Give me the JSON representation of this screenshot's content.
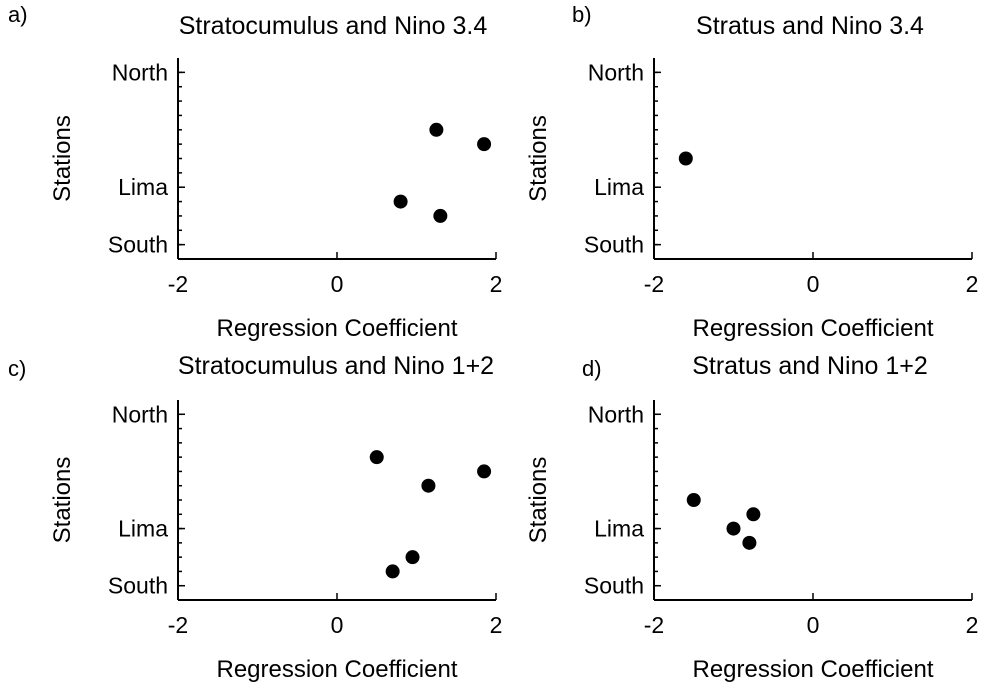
{
  "chart_data": [
    {
      "type": "scatter",
      "panel_label": "a)",
      "title": "Stratocumulus and Nino 3.4",
      "xlabel": "Regression Coefficient",
      "ylabel": "Stations",
      "xlim": [
        -2,
        2
      ],
      "ylim": [
        0,
        14
      ],
      "xticks": [
        -2,
        0,
        2
      ],
      "yticks": [
        {
          "value": 1,
          "label": "South"
        },
        {
          "value": 5,
          "label": "Lima"
        },
        {
          "value": 13,
          "label": "North"
        }
      ],
      "points": [
        {
          "x": 1.25,
          "y": 9
        },
        {
          "x": 1.85,
          "y": 8
        },
        {
          "x": 0.8,
          "y": 4
        },
        {
          "x": 1.3,
          "y": 3
        }
      ]
    },
    {
      "type": "scatter",
      "panel_label": "b)",
      "title": "Stratus and Nino 3.4",
      "xlabel": "Regression Coefficient",
      "ylabel": "Stations",
      "xlim": [
        -2,
        2
      ],
      "ylim": [
        0,
        14
      ],
      "xticks": [
        -2,
        0,
        2
      ],
      "yticks": [
        {
          "value": 1,
          "label": "South"
        },
        {
          "value": 5,
          "label": "Lima"
        },
        {
          "value": 13,
          "label": "North"
        }
      ],
      "points": [
        {
          "x": -1.6,
          "y": 7
        }
      ]
    },
    {
      "type": "scatter",
      "panel_label": "c)",
      "title": "Stratocumulus and Nino 1+2",
      "xlabel": "Regression Coefficient",
      "ylabel": "Stations",
      "xlim": [
        -2,
        2
      ],
      "ylim": [
        0,
        14
      ],
      "xticks": [
        -2,
        0,
        2
      ],
      "yticks": [
        {
          "value": 1,
          "label": "South"
        },
        {
          "value": 5,
          "label": "Lima"
        },
        {
          "value": 13,
          "label": "North"
        }
      ],
      "points": [
        {
          "x": 0.5,
          "y": 10
        },
        {
          "x": 1.85,
          "y": 9
        },
        {
          "x": 1.15,
          "y": 8
        },
        {
          "x": 0.95,
          "y": 3
        },
        {
          "x": 0.7,
          "y": 2
        }
      ]
    },
    {
      "type": "scatter",
      "panel_label": "d)",
      "title": "Stratus and Nino 1+2",
      "xlabel": "Regression Coefficient",
      "ylabel": "Stations",
      "xlim": [
        -2,
        2
      ],
      "ylim": [
        0,
        14
      ],
      "xticks": [
        -2,
        0,
        2
      ],
      "yticks": [
        {
          "value": 1,
          "label": "South"
        },
        {
          "value": 5,
          "label": "Lima"
        },
        {
          "value": 13,
          "label": "North"
        }
      ],
      "points": [
        {
          "x": -1.5,
          "y": 7
        },
        {
          "x": -0.75,
          "y": 6
        },
        {
          "x": -1.0,
          "y": 5
        },
        {
          "x": -0.8,
          "y": 4
        }
      ]
    }
  ]
}
